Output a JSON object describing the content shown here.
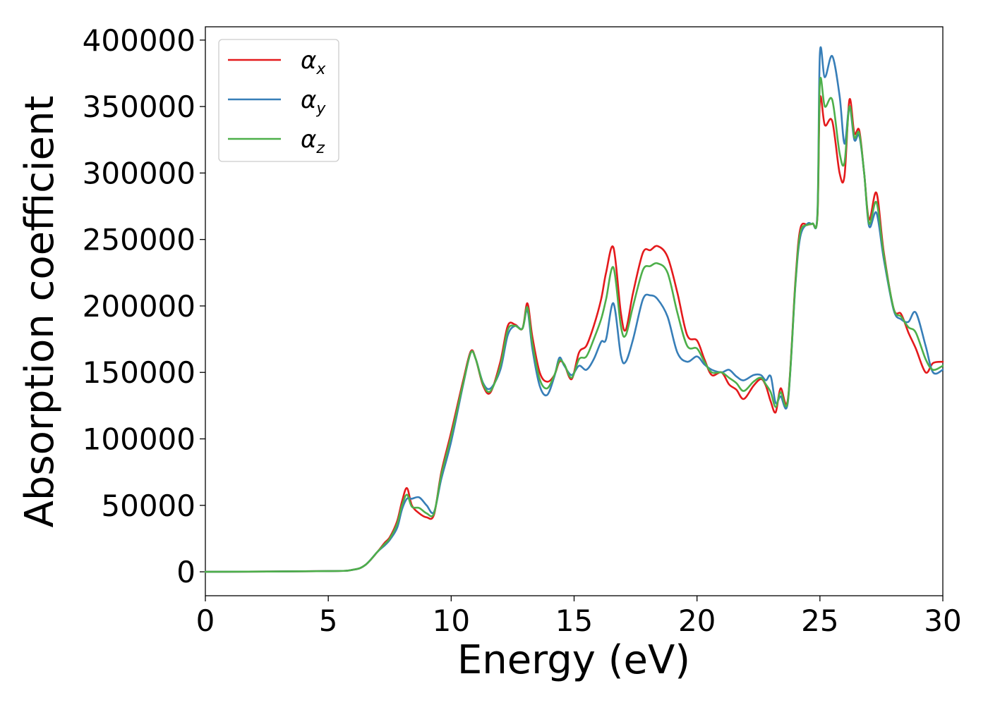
{
  "chart_data": {
    "type": "line",
    "title": "",
    "xlabel": "Energy (eV)",
    "ylabel": "Absorption coefficient",
    "xlim": [
      0,
      30
    ],
    "ylim": [
      -18000,
      410000
    ],
    "xticks": [
      0,
      5,
      10,
      15,
      20,
      25,
      30
    ],
    "yticks": [
      0,
      50000,
      100000,
      150000,
      200000,
      250000,
      300000,
      350000,
      400000
    ],
    "grid": false,
    "legend": "top-left",
    "x": [
      0,
      5,
      6,
      6.5,
      7,
      7.3,
      7.5,
      7.8,
      8.0,
      8.2,
      8.4,
      8.7,
      9.0,
      9.3,
      9.6,
      10.0,
      10.5,
      10.8,
      11.0,
      11.3,
      11.6,
      12.0,
      12.3,
      12.6,
      12.9,
      13.1,
      13.3,
      13.6,
      13.9,
      14.2,
      14.4,
      14.6,
      14.9,
      15.2,
      15.5,
      15.8,
      16.1,
      16.3,
      16.6,
      16.9,
      17.1,
      17.4,
      17.8,
      18.1,
      18.4,
      18.8,
      19.2,
      19.6,
      20.0,
      20.3,
      20.6,
      21.0,
      21.3,
      21.6,
      21.9,
      22.3,
      22.6,
      22.8,
      23.0,
      23.2,
      23.4,
      23.7,
      24.0,
      24.2,
      24.5,
      24.7,
      24.9,
      25.0,
      25.2,
      25.5,
      25.8,
      26.0,
      26.2,
      26.4,
      26.6,
      26.8,
      27.0,
      27.3,
      27.6,
      28.0,
      28.3,
      28.6,
      28.9,
      29.3,
      29.6,
      30.0
    ],
    "series": [
      {
        "name": "αx",
        "color": "#e41a1c",
        "values": [
          0,
          500,
          1500,
          5000,
          15000,
          22000,
          26000,
          38000,
          53000,
          63000,
          50000,
          44000,
          41000,
          43000,
          75000,
          105000,
          145000,
          166000,
          160000,
          140000,
          135000,
          158000,
          185000,
          186000,
          183000,
          202000,
          177000,
          150000,
          143000,
          148000,
          158000,
          156000,
          145000,
          165000,
          170000,
          185000,
          205000,
          225000,
          244000,
          195000,
          182000,
          210000,
          240000,
          242000,
          245000,
          237000,
          210000,
          178000,
          174000,
          160000,
          148000,
          150000,
          141000,
          137000,
          130000,
          140000,
          145000,
          140000,
          128000,
          120000,
          138000,
          130000,
          218000,
          258000,
          261000,
          262000,
          267000,
          355000,
          336000,
          339000,
          300000,
          298000,
          355000,
          330000,
          332000,
          300000,
          265000,
          285000,
          240000,
          198000,
          194000,
          180000,
          168000,
          150000,
          157000,
          158000
        ]
      },
      {
        "name": "αy",
        "color": "#377eb8",
        "values": [
          0,
          500,
          1500,
          5000,
          15000,
          20000,
          24000,
          33000,
          47000,
          55000,
          55000,
          56000,
          50000,
          45000,
          70000,
          98000,
          142000,
          165000,
          160000,
          142000,
          138000,
          152000,
          178000,
          185000,
          183000,
          197000,
          168000,
          140000,
          133000,
          147000,
          161000,
          155000,
          148000,
          155000,
          152000,
          160000,
          173000,
          175000,
          202000,
          163000,
          158000,
          175000,
          205000,
          208000,
          205000,
          192000,
          165000,
          158000,
          162000,
          156000,
          152000,
          150000,
          152000,
          147000,
          144000,
          148000,
          148000,
          144000,
          147000,
          127000,
          132000,
          128000,
          215000,
          252000,
          262000,
          262000,
          270000,
          390000,
          372000,
          388000,
          358000,
          322000,
          350000,
          325000,
          328000,
          300000,
          260000,
          270000,
          235000,
          197000,
          190000,
          188000,
          195000,
          170000,
          150000,
          152000
        ]
      },
      {
        "name": "αz",
        "color": "#4daf4a",
        "values": [
          0,
          500,
          1500,
          5000,
          15000,
          21000,
          25000,
          36000,
          50000,
          58000,
          49000,
          48000,
          44000,
          44000,
          73000,
          102000,
          143000,
          165000,
          160000,
          141000,
          136000,
          155000,
          182000,
          185000,
          183000,
          199000,
          172000,
          145000,
          138000,
          148000,
          159000,
          156000,
          146000,
          160000,
          162000,
          175000,
          190000,
          205000,
          229000,
          185000,
          178000,
          200000,
          227000,
          230000,
          232000,
          225000,
          195000,
          170000,
          168000,
          158000,
          150000,
          150000,
          146000,
          142000,
          136000,
          143000,
          146000,
          141000,
          135000,
          124000,
          135000,
          129000,
          216000,
          255000,
          261000,
          262000,
          268000,
          368000,
          350000,
          355000,
          315000,
          308000,
          350000,
          327000,
          330000,
          300000,
          262000,
          278000,
          238000,
          198000,
          192000,
          184000,
          180000,
          160000,
          152000,
          155000
        ]
      }
    ]
  },
  "legend": {
    "items": [
      {
        "symbol": "α",
        "subscript": "x",
        "color": "#e41a1c"
      },
      {
        "symbol": "α",
        "subscript": "y",
        "color": "#377eb8"
      },
      {
        "symbol": "α",
        "subscript": "z",
        "color": "#4daf4a"
      }
    ]
  }
}
